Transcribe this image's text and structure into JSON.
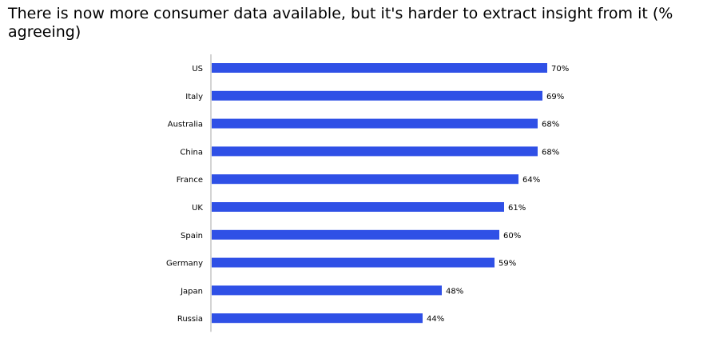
{
  "chart_data": {
    "type": "bar",
    "orientation": "horizontal",
    "title": "There is now more consumer data available, but it's harder to extract insight from it (% agreeing)",
    "categories": [
      "US",
      "Italy",
      "Australia",
      "China",
      "France",
      "UK",
      "Spain",
      "Germany",
      "Japan",
      "Russia"
    ],
    "values": [
      70,
      69,
      68,
      68,
      64,
      61,
      60,
      59,
      48,
      44
    ],
    "value_labels": [
      "70%",
      "69%",
      "68%",
      "68%",
      "64%",
      "61%",
      "60%",
      "59%",
      "48%",
      "44%"
    ],
    "unit": "%",
    "xlim": [
      0,
      100
    ],
    "grid": false,
    "legend": "none",
    "bar_color": "#2f50e6",
    "axis_color": "#aaaaaa"
  }
}
